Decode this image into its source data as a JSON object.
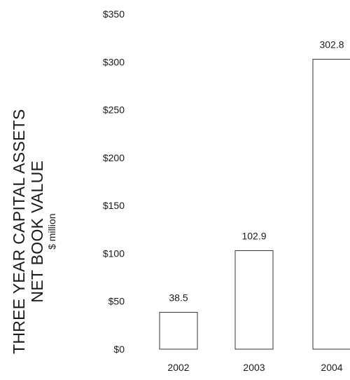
{
  "chart_data": {
    "type": "bar",
    "title_line1": "THREE YEAR CAPITAL ASSETS",
    "title_line2": "NET BOOK VALUE",
    "ylabel": "$ million",
    "categories": [
      "2002",
      "2003",
      "2004"
    ],
    "values": [
      38.5,
      102.9,
      302.8
    ],
    "value_labels": [
      "38.5",
      "102.9",
      "302.8"
    ],
    "ylim": [
      0,
      350
    ],
    "y_ticks": [
      0,
      50,
      100,
      150,
      200,
      250,
      300,
      350
    ],
    "y_tick_labels": [
      "$0",
      "$50",
      "$100",
      "$150",
      "$200",
      "$250",
      "$300",
      "$350"
    ],
    "grid": false,
    "bar_fill": "#ffffff",
    "bar_stroke": "#333333"
  }
}
